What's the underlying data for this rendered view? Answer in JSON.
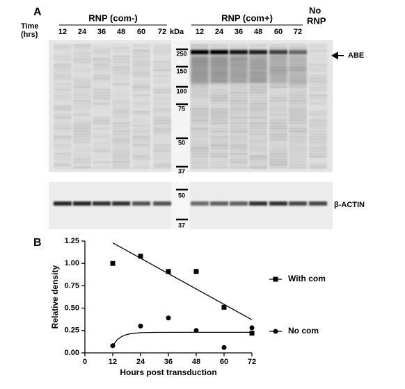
{
  "panel_a": {
    "label": "A",
    "time_label": [
      "Time",
      "(hrs)"
    ],
    "groups": [
      {
        "label": "RNP (com-)",
        "lanes": [
          "12",
          "24",
          "36",
          "48",
          "60",
          "72"
        ]
      },
      {
        "label": "RNP (com+)",
        "lanes": [
          "12",
          "24",
          "36",
          "48",
          "60",
          "72"
        ]
      }
    ],
    "no_rnp": [
      "No",
      "RNP"
    ],
    "kda": "kDa",
    "markers_top": [
      "250",
      "150",
      "100",
      "75",
      "50",
      "37"
    ],
    "markers_bottom": [
      "50",
      "37"
    ],
    "abe": "ABE",
    "actin": "β-ACTIN"
  },
  "panel_b_label": "B",
  "chart_data": {
    "type": "scatter",
    "xlabel": "Hours post transduction",
    "ylabel": "Relative density",
    "xlim": [
      0,
      72
    ],
    "xticks": [
      0,
      12,
      24,
      36,
      48,
      60,
      72
    ],
    "ylim": [
      0,
      1.25
    ],
    "yticks": [
      {
        "value": 0,
        "label": "0.00"
      },
      {
        "value": 0.25,
        "label": "0.25"
      },
      {
        "value": 0.5,
        "label": "0.50"
      },
      {
        "value": 0.75,
        "label": "0.75"
      },
      {
        "value": 1,
        "label": "1.00"
      },
      {
        "value": 1.25,
        "label": "1.25"
      }
    ],
    "series": [
      {
        "name": "With com",
        "color": "#000000",
        "marker": "square",
        "x": [
          12,
          24,
          36,
          48,
          60,
          72
        ],
        "values": [
          1.0,
          1.08,
          0.91,
          0.91,
          0.51,
          0.22
        ],
        "fit": {
          "x": [
            12,
            72
          ],
          "values": [
            1.23,
            0.37
          ]
        }
      },
      {
        "name": "No com",
        "color": "#000000",
        "marker": "circle",
        "x": [
          12,
          24,
          36,
          48,
          60,
          72
        ],
        "values": [
          0.08,
          0.3,
          0.39,
          0.25,
          0.06,
          0.28
        ],
        "fit": {
          "x": [
            12,
            14,
            16,
            18,
            20,
            24,
            30,
            40,
            72
          ],
          "values": [
            0.08,
            0.148,
            0.185,
            0.205,
            0.216,
            0.226,
            0.229,
            0.23,
            0.23
          ]
        }
      }
    ]
  }
}
